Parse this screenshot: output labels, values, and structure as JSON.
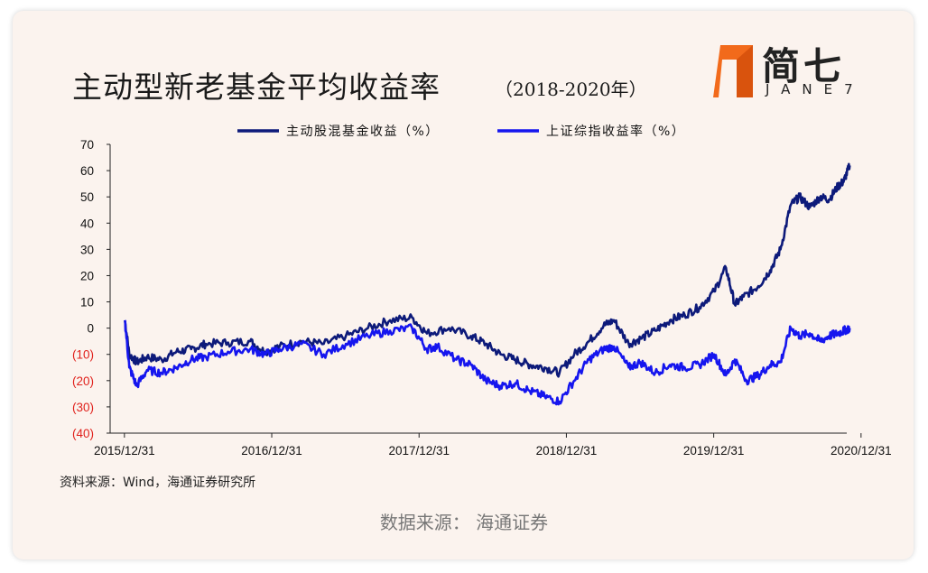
{
  "header": {
    "title": "主动型新老基金平均收益率",
    "subtitle": "（2018-2020年）"
  },
  "logo": {
    "cn": "简七",
    "en": "JANE7",
    "accent_color": "#f26a1b"
  },
  "source_note": "资料来源：Wind，海通证券研究所",
  "footer": "数据来源：  海通证券",
  "chart_data": {
    "type": "line",
    "legend_position": "top",
    "grid": false,
    "x_ticks": [
      "2015/12/31",
      "2016/12/31",
      "2017/12/31",
      "2018/12/31",
      "2019/12/31",
      "2020/12/31"
    ],
    "xlim": [
      2015.9,
      2020.9
    ],
    "ylim": [
      -40,
      70
    ],
    "y_ticks": [
      {
        "value": 70,
        "label": "70"
      },
      {
        "value": 60,
        "label": "60"
      },
      {
        "value": 50,
        "label": "50"
      },
      {
        "value": 40,
        "label": "40"
      },
      {
        "value": 30,
        "label": "30"
      },
      {
        "value": 20,
        "label": "20"
      },
      {
        "value": 10,
        "label": "10"
      },
      {
        "value": 0,
        "label": "0"
      },
      {
        "value": -10,
        "label": "(10)"
      },
      {
        "value": -20,
        "label": "(20)"
      },
      {
        "value": -30,
        "label": "(30)"
      },
      {
        "value": -40,
        "label": "(40)"
      }
    ],
    "negative_tick_color": "#e0201b",
    "series": [
      {
        "name": "主动股混基金收益（%）",
        "color": "#0d1a7a",
        "points": [
          [
            2016.0,
            3
          ],
          [
            2016.03,
            -10
          ],
          [
            2016.08,
            -13
          ],
          [
            2016.15,
            -11
          ],
          [
            2016.25,
            -12
          ],
          [
            2016.35,
            -9
          ],
          [
            2016.45,
            -8
          ],
          [
            2016.55,
            -6
          ],
          [
            2016.7,
            -5.5
          ],
          [
            2016.85,
            -5
          ],
          [
            2016.95,
            -9
          ],
          [
            2017.05,
            -7
          ],
          [
            2017.2,
            -5
          ],
          [
            2017.35,
            -6
          ],
          [
            2017.5,
            -3
          ],
          [
            2017.65,
            0
          ],
          [
            2017.8,
            3
          ],
          [
            2017.95,
            4
          ],
          [
            2018.05,
            -2
          ],
          [
            2018.2,
            0
          ],
          [
            2018.35,
            -3
          ],
          [
            2018.45,
            -6
          ],
          [
            2018.55,
            -10
          ],
          [
            2018.65,
            -12
          ],
          [
            2018.75,
            -14
          ],
          [
            2018.85,
            -15
          ],
          [
            2018.95,
            -17
          ],
          [
            2019.05,
            -10
          ],
          [
            2019.15,
            -5
          ],
          [
            2019.25,
            1
          ],
          [
            2019.32,
            3
          ],
          [
            2019.42,
            -6
          ],
          [
            2019.5,
            -4
          ],
          [
            2019.6,
            -1
          ],
          [
            2019.7,
            3
          ],
          [
            2019.8,
            5
          ],
          [
            2019.9,
            8
          ],
          [
            2020.0,
            14
          ],
          [
            2020.08,
            23
          ],
          [
            2020.14,
            9
          ],
          [
            2020.2,
            12
          ],
          [
            2020.3,
            16
          ],
          [
            2020.38,
            22
          ],
          [
            2020.45,
            30
          ],
          [
            2020.52,
            47
          ],
          [
            2020.58,
            50
          ],
          [
            2020.65,
            46
          ],
          [
            2020.72,
            50
          ],
          [
            2020.78,
            49
          ],
          [
            2020.84,
            54
          ],
          [
            2020.88,
            56
          ],
          [
            2020.92,
            62
          ]
        ]
      },
      {
        "name": "上证综指收益率（%）",
        "color": "#1515ee",
        "points": [
          [
            2016.0,
            3
          ],
          [
            2016.03,
            -15
          ],
          [
            2016.08,
            -22
          ],
          [
            2016.15,
            -16
          ],
          [
            2016.25,
            -17
          ],
          [
            2016.35,
            -15
          ],
          [
            2016.45,
            -12
          ],
          [
            2016.55,
            -11
          ],
          [
            2016.7,
            -9
          ],
          [
            2016.85,
            -8
          ],
          [
            2016.95,
            -10
          ],
          [
            2017.05,
            -8
          ],
          [
            2017.2,
            -6
          ],
          [
            2017.35,
            -10
          ],
          [
            2017.5,
            -6
          ],
          [
            2017.65,
            -3
          ],
          [
            2017.8,
            -1
          ],
          [
            2017.95,
            0
          ],
          [
            2018.05,
            -8
          ],
          [
            2018.12,
            -7
          ],
          [
            2018.25,
            -12
          ],
          [
            2018.35,
            -14
          ],
          [
            2018.45,
            -20
          ],
          [
            2018.55,
            -22
          ],
          [
            2018.65,
            -21
          ],
          [
            2018.75,
            -24
          ],
          [
            2018.85,
            -26
          ],
          [
            2018.95,
            -28
          ],
          [
            2019.05,
            -20
          ],
          [
            2019.15,
            -12
          ],
          [
            2019.25,
            -8
          ],
          [
            2019.32,
            -7
          ],
          [
            2019.42,
            -15
          ],
          [
            2019.5,
            -13
          ],
          [
            2019.6,
            -17
          ],
          [
            2019.7,
            -14
          ],
          [
            2019.8,
            -15
          ],
          [
            2019.9,
            -14
          ],
          [
            2020.0,
            -10
          ],
          [
            2020.08,
            -18
          ],
          [
            2020.14,
            -12
          ],
          [
            2020.22,
            -20
          ],
          [
            2020.3,
            -18
          ],
          [
            2020.38,
            -14
          ],
          [
            2020.45,
            -13
          ],
          [
            2020.52,
            0
          ],
          [
            2020.58,
            -3
          ],
          [
            2020.65,
            -2
          ],
          [
            2020.72,
            -5
          ],
          [
            2020.78,
            -3
          ],
          [
            2020.84,
            -2
          ],
          [
            2020.88,
            -1
          ],
          [
            2020.92,
            0
          ]
        ]
      }
    ]
  }
}
